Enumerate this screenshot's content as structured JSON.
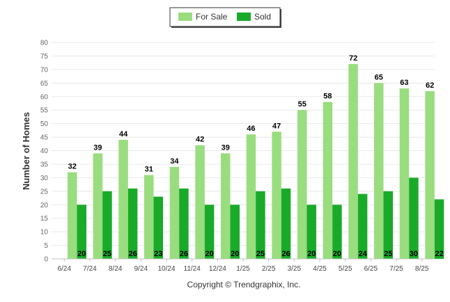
{
  "chart_data": {
    "type": "bar",
    "categories": [
      "6/24",
      "7/24",
      "8/24",
      "9/24",
      "10/24",
      "11/24",
      "12/24",
      "1/25",
      "2/25",
      "3/25",
      "4/25",
      "5/25",
      "6/25",
      "7/25",
      "8/25"
    ],
    "series": [
      {
        "name": "For Sale",
        "color": "#99dd7f",
        "values": [
          32,
          39,
          44,
          31,
          34,
          42,
          39,
          46,
          47,
          55,
          58,
          72,
          65,
          63,
          62
        ]
      },
      {
        "name": "Sold",
        "color": "#1aaa2a",
        "values": [
          20,
          25,
          26,
          23,
          26,
          20,
          20,
          25,
          26,
          20,
          20,
          24,
          25,
          30,
          22
        ]
      }
    ],
    "ylabel": "Number of Homes",
    "xlabel": "",
    "ylim": [
      0,
      80
    ],
    "yticks": [
      0,
      5,
      10,
      15,
      20,
      25,
      30,
      35,
      40,
      45,
      50,
      55,
      60,
      65,
      70,
      75,
      80
    ],
    "grid": true,
    "legend_position": "top-center"
  },
  "credit": "Copyright © Trendgraphix, Inc."
}
